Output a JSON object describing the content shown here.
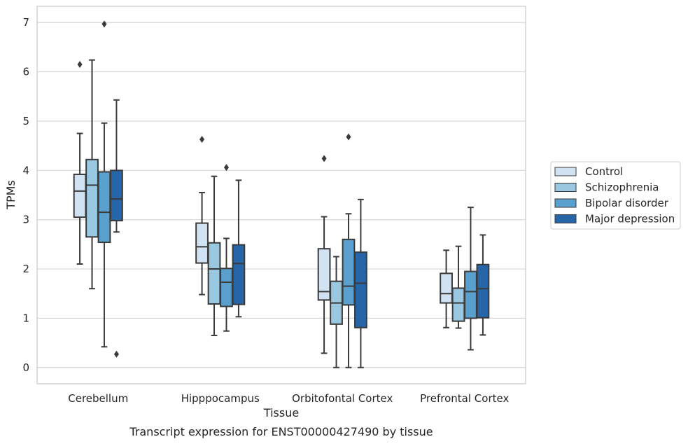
{
  "chart_data": {
    "type": "boxplot",
    "caption": "Transcript expression for ENST00000427490 by tissue",
    "xlabel": "Tissue",
    "ylabel": "TPMs",
    "ylim": [
      -0.33,
      7.33
    ],
    "yticks": [
      0,
      1,
      2,
      3,
      4,
      5,
      6,
      7
    ],
    "grid": "horizontal",
    "legend_position": "right",
    "categories": [
      "Cerebellum",
      "Hipppocampus",
      "Orbitofontal Cortex",
      "Prefrontal Cortex"
    ],
    "series": [
      {
        "name": "Control",
        "color": "#d1e2f2",
        "boxes": [
          {
            "whislo": 2.1,
            "q1": 3.05,
            "med": 3.58,
            "q3": 3.92,
            "whishi": 4.75,
            "fliers": [
              6.15
            ]
          },
          {
            "whislo": 1.48,
            "q1": 2.12,
            "med": 2.45,
            "q3": 2.93,
            "whishi": 3.55,
            "fliers": [
              4.63
            ]
          },
          {
            "whislo": 0.29,
            "q1": 1.37,
            "med": 1.54,
            "q3": 2.41,
            "whishi": 3.06,
            "fliers": [
              4.24
            ]
          },
          {
            "whislo": 0.81,
            "q1": 1.31,
            "med": 1.5,
            "q3": 1.91,
            "whishi": 2.38,
            "fliers": []
          }
        ]
      },
      {
        "name": "Schizophrenia",
        "color": "#9ac8e0",
        "boxes": [
          {
            "whislo": 1.6,
            "q1": 2.65,
            "med": 3.7,
            "q3": 4.22,
            "whishi": 6.24,
            "fliers": []
          },
          {
            "whislo": 0.65,
            "q1": 1.29,
            "med": 2.0,
            "q3": 2.53,
            "whishi": 3.88,
            "fliers": []
          },
          {
            "whislo": 0.0,
            "q1": 0.88,
            "med": 1.31,
            "q3": 1.75,
            "whishi": 2.25,
            "fliers": []
          },
          {
            "whislo": 0.8,
            "q1": 0.94,
            "med": 1.31,
            "q3": 1.61,
            "whishi": 2.46,
            "fliers": []
          }
        ]
      },
      {
        "name": "Bipolar disorder",
        "color": "#5aa0cf",
        "boxes": [
          {
            "whislo": 0.42,
            "q1": 2.54,
            "med": 3.15,
            "q3": 3.97,
            "whishi": 4.96,
            "fliers": [
              6.97
            ]
          },
          {
            "whislo": 0.74,
            "q1": 1.24,
            "med": 1.73,
            "q3": 2.01,
            "whishi": 2.62,
            "fliers": [
              4.06
            ]
          },
          {
            "whislo": 0.0,
            "q1": 1.27,
            "med": 1.65,
            "q3": 2.6,
            "whishi": 3.12,
            "fliers": [
              4.68
            ]
          },
          {
            "whislo": 0.36,
            "q1": 1.0,
            "med": 1.54,
            "q3": 1.95,
            "whishi": 3.25,
            "fliers": []
          }
        ]
      },
      {
        "name": "Major depression",
        "color": "#2666a8",
        "boxes": [
          {
            "whislo": 2.75,
            "q1": 2.98,
            "med": 3.42,
            "q3": 4.0,
            "whishi": 5.43,
            "fliers": [
              0.27
            ]
          },
          {
            "whislo": 1.03,
            "q1": 1.28,
            "med": 2.11,
            "q3": 2.49,
            "whishi": 3.8,
            "fliers": []
          },
          {
            "whislo": 0.0,
            "q1": 0.81,
            "med": 1.71,
            "q3": 2.34,
            "whishi": 3.41,
            "fliers": []
          },
          {
            "whislo": 0.66,
            "q1": 1.01,
            "med": 1.6,
            "q3": 2.09,
            "whishi": 2.69,
            "fliers": []
          }
        ]
      }
    ]
  }
}
